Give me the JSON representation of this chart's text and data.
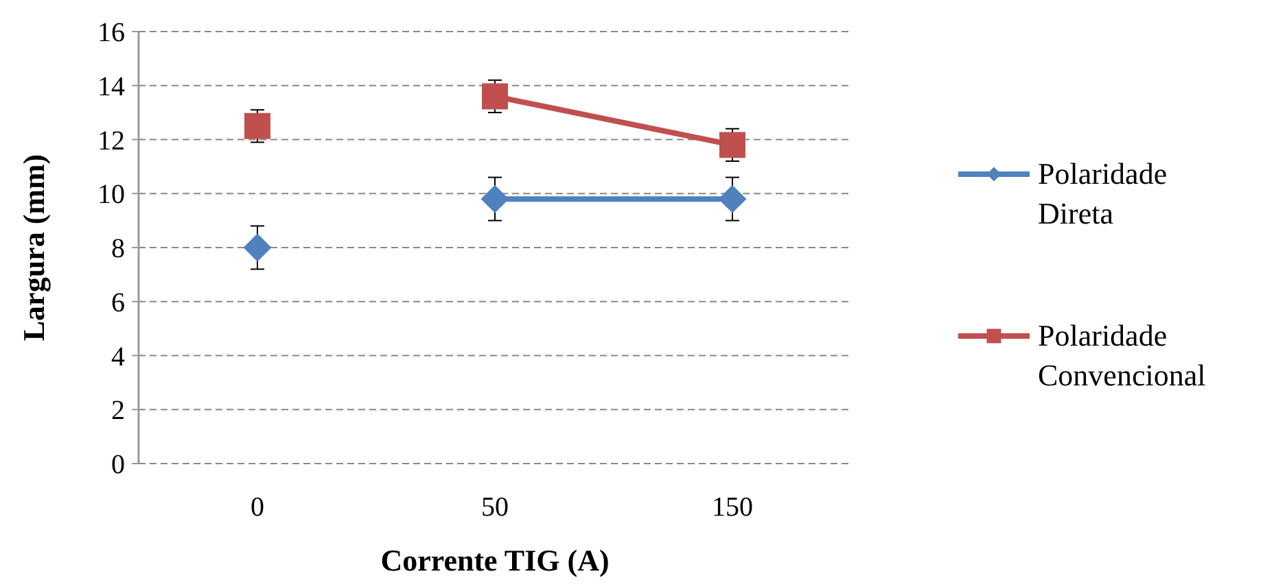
{
  "chart_data": {
    "type": "line",
    "xlabel": "Corrente TIG (A)",
    "ylabel": "Largura (mm)",
    "categories": [
      "0",
      "50",
      "150"
    ],
    "ylim": [
      0,
      16
    ],
    "yticks": [
      0,
      2,
      4,
      6,
      8,
      10,
      12,
      14,
      16
    ],
    "grid": "y",
    "legend": "right",
    "series": [
      {
        "name": " Polaridade Direta",
        "color": "#4f81bd",
        "marker": "diamond",
        "values": [
          null,
          9.8,
          9.8
        ],
        "errors": [
          null,
          0.8,
          0.8
        ]
      },
      {
        "name": "Polaridade Convencional",
        "color": "#c0504d",
        "marker": "square",
        "values": [
          null,
          13.6,
          11.8
        ],
        "errors": [
          null,
          0.6,
          0.6
        ]
      },
      {
        "type": "scatter",
        "color": "#4f81bd",
        "marker": "diamond",
        "values": [
          8.0,
          null,
          null
        ],
        "errors": [
          0.8,
          null,
          null
        ]
      },
      {
        "type": "scatter",
        "color": "#c0504d",
        "marker": "square",
        "values": [
          12.5,
          null,
          null
        ],
        "errors": [
          0.6,
          null,
          null
        ]
      }
    ]
  }
}
